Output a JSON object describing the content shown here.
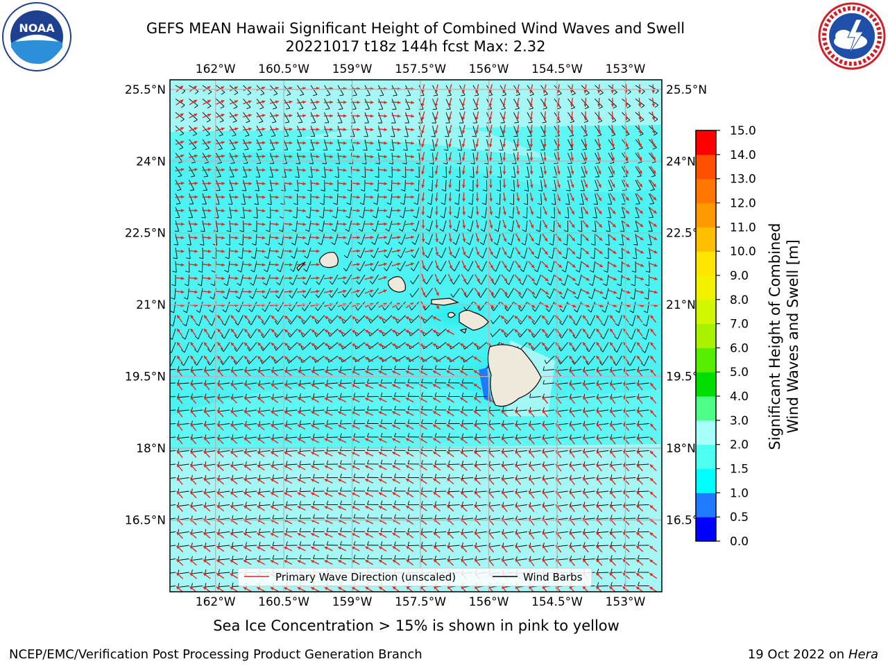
{
  "title_line1": "GEFS MEAN Hawaii Significant Height of Combined Wind Waves and Swell",
  "title_line2": "20221017 t18z 144h fcst   Max: 2.32",
  "caption": "Sea Ice Concentration > 15% is shown in pink to yellow",
  "footer_left": "NCEP/EMC/Verification Post Processing Product Generation Branch",
  "footer_right_prefix": "19 Oct 2022 on ",
  "footer_right_host": "Hera",
  "logos": {
    "left": "noaa-logo",
    "right": "nws-logo"
  },
  "legend": {
    "wave_dir": "Primary Wave Direction (unscaled)",
    "wind_barbs": "Wind Barbs",
    "wave_color": "#e8231a",
    "barb_color": "#000000"
  },
  "colorbar": {
    "label_line1": "Significant Height of Combined",
    "label_line2": "Wind Waves and Swell [m]",
    "ticks": [
      "0.0",
      "0.5",
      "1.0",
      "1.5",
      "2.0",
      "3.0",
      "4.0",
      "5.0",
      "6.0",
      "7.0",
      "8.0",
      "9.0",
      "10.0",
      "11.0",
      "12.0",
      "13.0",
      "14.0",
      "15.0"
    ],
    "colors": [
      "#0000ff",
      "#1e7bff",
      "#00ffff",
      "#4dfff0",
      "#a6fffa",
      "#4dff88",
      "#00dd00",
      "#55ee00",
      "#a8f200",
      "#d2f700",
      "#f2f200",
      "#ffe600",
      "#ffbf00",
      "#ff9900",
      "#ff7700",
      "#ff4f00",
      "#ff0000"
    ]
  },
  "chart_data": {
    "type": "heatmap",
    "title": "GEFS MEAN Hawaii Significant Height of Combined Wind Waves and Swell",
    "subtitle": "20221017 t18z 144h fcst   Max: 2.32",
    "variable": "Significant Height of Combined Wind Waves and Swell [m]",
    "max_value": 2.32,
    "lon_ticks": [
      "162°W",
      "160.5°W",
      "159°W",
      "157.5°W",
      "156°W",
      "154.5°W",
      "153°W"
    ],
    "lat_ticks": [
      "25.5°N",
      "24°N",
      "22.5°N",
      "21°N",
      "19.5°N",
      "18°N",
      "16.5°N"
    ],
    "lon_range": [
      -163,
      -152.2
    ],
    "lat_range": [
      15,
      25.7
    ],
    "grid": true,
    "colors": {
      "ocean_low": "#4df2f2",
      "ocean_mid": "#5ff7f4",
      "ocean_high": "#a4f7f5",
      "land": "#efe9dc"
    },
    "legend_placement": "bottom-center"
  }
}
